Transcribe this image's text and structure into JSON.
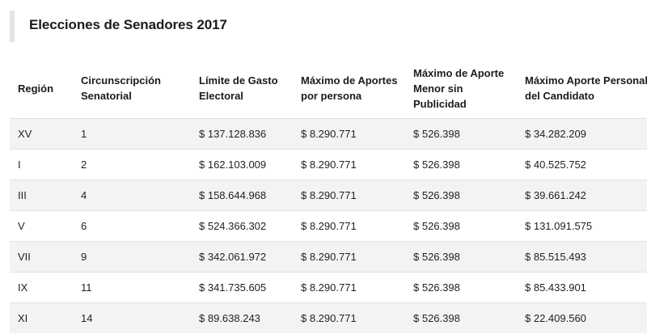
{
  "title": "Elecciones de Senadores 2017",
  "table": {
    "headers": [
      "Región",
      "Circunscripción Senatorial",
      "Límite de Gasto Electoral",
      "Máximo de Aportes por persona",
      "Máximo de Aporte Menor sin Publicidad",
      "Máximo Aporte Personal del Candidato"
    ],
    "rows": [
      [
        "XV",
        "1",
        "$ 137.128.836",
        "$ 8.290.771",
        "$ 526.398",
        "$ 34.282.209"
      ],
      [
        "I",
        "2",
        "$ 162.103.009",
        "$ 8.290.771",
        "$ 526.398",
        "$ 40.525.752"
      ],
      [
        "III",
        "4",
        "$ 158.644.968",
        "$ 8.290.771",
        "$ 526.398",
        "$ 39.661.242"
      ],
      [
        "V",
        "6",
        "$ 524.366.302",
        "$ 8.290.771",
        "$ 526.398",
        "$ 131.091.575"
      ],
      [
        "VII",
        "9",
        "$ 342.061.972",
        "$ 8.290.771",
        "$ 526.398",
        "$ 85.515.493"
      ],
      [
        "IX",
        "11",
        "$ 341.735.605",
        "$ 8.290.771",
        "$ 526.398",
        "$ 85.433.901"
      ],
      [
        "XI",
        "14",
        "$ 89.638.243",
        "$ 8.290.771",
        "$ 526.398",
        "$ 22.409.560"
      ]
    ]
  }
}
